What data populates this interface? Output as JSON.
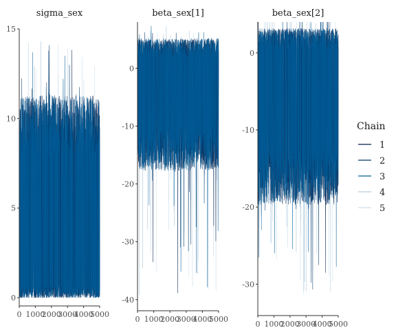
{
  "chart_data": [
    {
      "type": "line",
      "title": "sigma_sex",
      "xlabel": "",
      "ylabel": "",
      "xlim": [
        0,
        5000
      ],
      "ylim": [
        0,
        15
      ],
      "x_ticks": [
        0,
        1000,
        2000,
        3000,
        4000,
        5000
      ],
      "y_ticks": [
        0,
        5,
        10,
        15
      ],
      "x_tick_labels": [
        "0",
        "1000",
        "2000",
        "3000",
        "4000",
        "5000"
      ],
      "y_tick_labels": [
        "0",
        "5",
        "10",
        "15"
      ],
      "band": {
        "p_low": 0.3,
        "q_low": 0.6,
        "q_high": 7.6,
        "p_high": 9.6,
        "min": 0.05,
        "max": 14.3
      },
      "series": [
        {
          "chain": "1",
          "color": "#011f4b",
          "seed": 11
        },
        {
          "chain": "2",
          "color": "#03396c",
          "seed": 23
        },
        {
          "chain": "3",
          "color": "#005b96",
          "seed": 37
        },
        {
          "chain": "4",
          "color": "#b3cde0",
          "seed": 41
        },
        {
          "chain": "5",
          "color": "#d1e1ec",
          "seed": 53
        }
      ]
    },
    {
      "type": "line",
      "title": "beta_sex[1]",
      "xlabel": "",
      "ylabel": "",
      "xlim": [
        0,
        5000
      ],
      "ylim": [
        -40.5,
        8
      ],
      "x_ticks": [
        0,
        1000,
        2000,
        3000,
        4000,
        5000
      ],
      "y_ticks": [
        -40,
        -30,
        -20,
        -10,
        0
      ],
      "x_tick_labels": [
        "0",
        "1000",
        "2000",
        "3000",
        "4000",
        "5000"
      ],
      "y_tick_labels": [
        "-40",
        "-30",
        "-20",
        "-10",
        "0"
      ],
      "band": {
        "p_low": -14,
        "q_low": -9.5,
        "q_high": 1.5,
        "p_high": 3.5,
        "min": -39.5,
        "max": 7.5
      },
      "series": [
        {
          "chain": "1",
          "color": "#011f4b",
          "seed": 61
        },
        {
          "chain": "2",
          "color": "#03396c",
          "seed": 73
        },
        {
          "chain": "3",
          "color": "#005b96",
          "seed": 89
        },
        {
          "chain": "4",
          "color": "#b3cde0",
          "seed": 97
        },
        {
          "chain": "5",
          "color": "#d1e1ec",
          "seed": 101
        }
      ]
    },
    {
      "type": "line",
      "title": "beta_sex[2]",
      "xlabel": "",
      "ylabel": "",
      "xlim": [
        0,
        5000
      ],
      "ylim": [
        -33,
        4
      ],
      "x_ticks": [
        0,
        1000,
        2000,
        3000,
        4000,
        5000
      ],
      "y_ticks": [
        -30,
        -20,
        -10,
        0
      ],
      "x_tick_labels": [
        "0",
        "1000",
        "2000",
        "3000",
        "4000",
        "5000"
      ],
      "y_tick_labels": [
        "-30",
        "-20",
        "-10",
        "0"
      ],
      "band": {
        "p_low": -16,
        "q_low": -11.5,
        "q_high": 0.2,
        "p_high": 1.8,
        "min": -31.5,
        "max": 7.8
      },
      "series": [
        {
          "chain": "1",
          "color": "#011f4b",
          "seed": 113
        },
        {
          "chain": "2",
          "color": "#03396c",
          "seed": 127
        },
        {
          "chain": "3",
          "color": "#005b96",
          "seed": 131
        },
        {
          "chain": "4",
          "color": "#b3cde0",
          "seed": 137
        },
        {
          "chain": "5",
          "color": "#d1e1ec",
          "seed": 149
        }
      ]
    }
  ],
  "legend": {
    "title": "Chain",
    "placement": "right",
    "items": [
      {
        "label": "1",
        "color": "#011f4b"
      },
      {
        "label": "2",
        "color": "#03396c"
      },
      {
        "label": "3",
        "color": "#005b96"
      },
      {
        "label": "4",
        "color": "#b3cde0"
      },
      {
        "label": "5",
        "color": "#d1e1ec"
      }
    ]
  }
}
